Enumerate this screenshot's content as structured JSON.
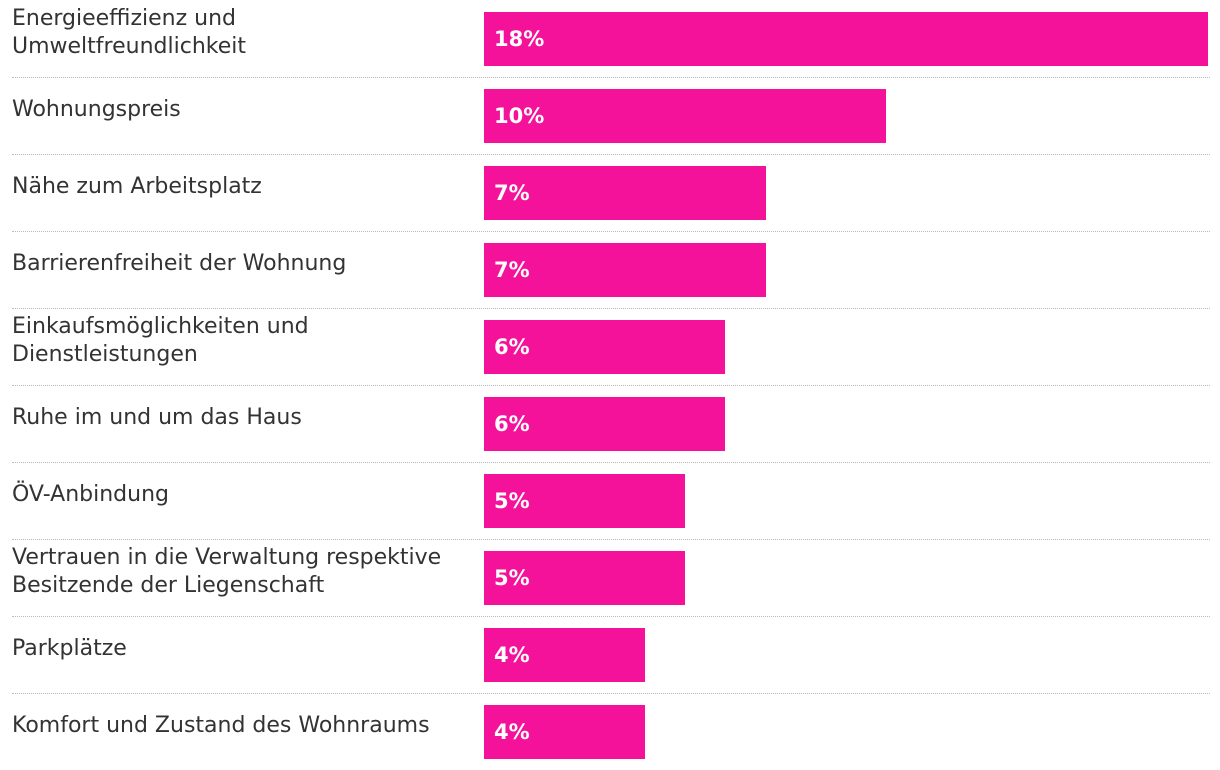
{
  "chart_data": {
    "type": "bar",
    "orientation": "horizontal",
    "bar_color": "#f5129b",
    "categories": [
      "Energieeffizienz und Umweltfreundlichkeit",
      "Wohnungspreis",
      "Nähe zum Arbeitsplatz",
      "Barrierenfreiheit der Wohnung",
      "Einkaufsmöglichkeiten und Dienstleistungen",
      "Ruhe im und um das Haus",
      "ÖV-Anbindung",
      "Vertrauen in die Verwaltung respektive Besitzende der Liegenschaft",
      "Parkplätze",
      "Komfort und Zustand des Wohnraums"
    ],
    "values": [
      18,
      10,
      7,
      7,
      6,
      6,
      5,
      5,
      4,
      4
    ],
    "value_labels": [
      "18%",
      "10%",
      "7%",
      "7%",
      "6%",
      "6%",
      "5%",
      "5%",
      "4%",
      "4%"
    ],
    "value_axis_range": [
      0,
      18
    ],
    "grid": false
  }
}
